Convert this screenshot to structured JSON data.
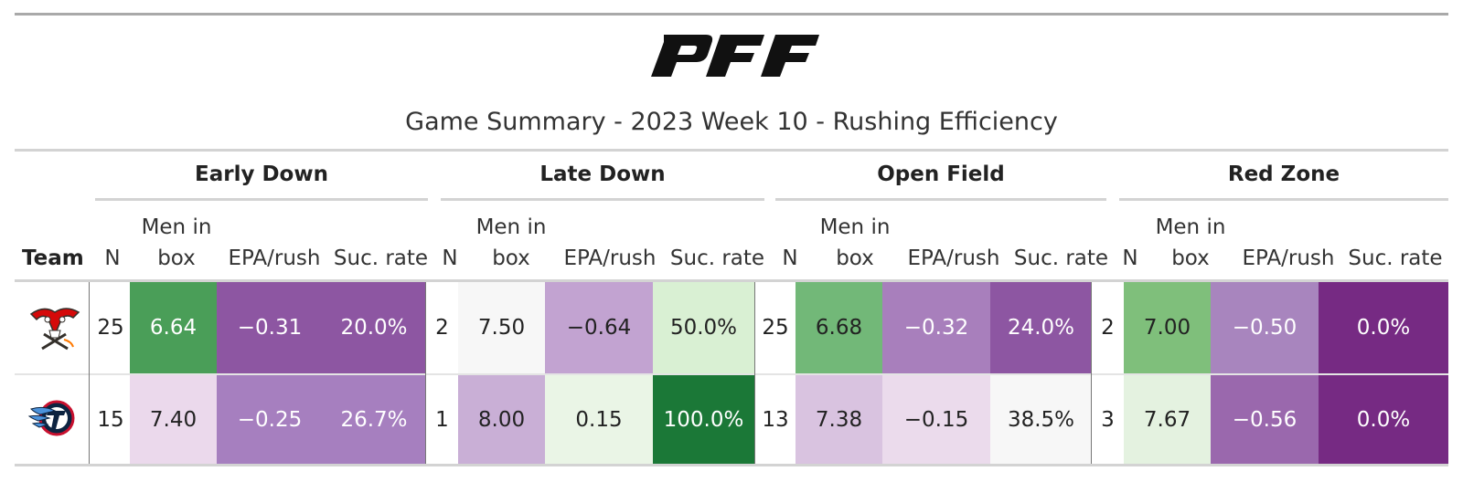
{
  "title": "Game Summary - 2023 Week 10 - Rushing Efficiency",
  "logo_text": "PFF",
  "spanners": [
    "Early Down",
    "Late Down",
    "Open Field",
    "Red Zone"
  ],
  "columns": {
    "team": "Team",
    "n": "N",
    "men_in_box_line1": "Men in",
    "men_in_box_line2": "box",
    "epa": "EPA/rush",
    "suc": "Suc. rate"
  },
  "rows": [
    {
      "team_icon": "buccaneers-logo-icon",
      "groups": [
        {
          "n": "25",
          "box": "6.64",
          "epa": "−0.31",
          "suc": "20.0%",
          "colors": {
            "box": "#4a9e58",
            "epa": "#8d56a2",
            "suc": "#8d56a2"
          }
        },
        {
          "n": "2",
          "box": "7.50",
          "epa": "−0.64",
          "suc": "50.0%",
          "colors": {
            "box": "#f7f7f7",
            "epa": "#c2a3d1",
            "suc": "#d9f0d3"
          }
        },
        {
          "n": "25",
          "box": "6.68",
          "epa": "−0.32",
          "suc": "24.0%",
          "colors": {
            "box": "#72b878",
            "epa": "#a87fbc",
            "suc": "#8d56a2"
          }
        },
        {
          "n": "2",
          "box": "7.00",
          "epa": "−0.50",
          "suc": "0.0%",
          "colors": {
            "box": "#7fbf7b",
            "epa": "#a885be",
            "suc": "#762a83"
          }
        }
      ]
    },
    {
      "team_icon": "titans-logo-icon",
      "groups": [
        {
          "n": "15",
          "box": "7.40",
          "epa": "−0.25",
          "suc": "26.7%",
          "colors": {
            "box": "#ebd9ec",
            "epa": "#a67fbf",
            "suc": "#a67fbf"
          }
        },
        {
          "n": "1",
          "box": "8.00",
          "epa": "0.15",
          "suc": "100.0%",
          "colors": {
            "box": "#c9afd6",
            "epa": "#eaf5e6",
            "suc": "#1b7837"
          }
        },
        {
          "n": "13",
          "box": "7.38",
          "epa": "−0.15",
          "suc": "38.5%",
          "colors": {
            "box": "#d9c3e0",
            "epa": "#ebdbec",
            "suc": "#f7f7f7"
          }
        },
        {
          "n": "3",
          "box": "7.67",
          "epa": "−0.56",
          "suc": "0.0%",
          "colors": {
            "box": "#e4f2e0",
            "epa": "#9a68ad",
            "suc": "#762a83"
          }
        }
      ]
    }
  ]
}
